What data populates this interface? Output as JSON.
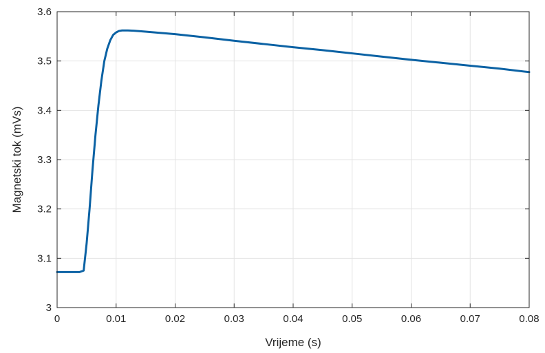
{
  "chart_data": {
    "type": "line",
    "title": "",
    "xlabel": "Vrijeme (s)",
    "ylabel": "Magnetski tok (mVs)",
    "xlim": [
      0,
      0.08
    ],
    "ylim": [
      3,
      3.6
    ],
    "grid": true,
    "xticks": [
      0,
      0.01,
      0.02,
      0.03,
      0.04,
      0.05,
      0.06,
      0.07,
      0.08
    ],
    "xtick_labels": [
      "0",
      "0.01",
      "0.02",
      "0.03",
      "0.04",
      "0.05",
      "0.06",
      "0.07",
      "0.08"
    ],
    "yticks": [
      3,
      3.1,
      3.2,
      3.3,
      3.4,
      3.5,
      3.6
    ],
    "ytick_labels": [
      "3",
      "3.1",
      "3.2",
      "3.3",
      "3.4",
      "3.5",
      "3.6"
    ],
    "series": [
      {
        "color": "#0b62a4",
        "x": [
          0,
          0.002,
          0.0038,
          0.0045,
          0.005,
          0.0055,
          0.006,
          0.0065,
          0.007,
          0.0075,
          0.008,
          0.0085,
          0.009,
          0.0095,
          0.01,
          0.0105,
          0.011,
          0.0115,
          0.012,
          0.013,
          0.015,
          0.02,
          0.025,
          0.03,
          0.035,
          0.04,
          0.045,
          0.05,
          0.055,
          0.06,
          0.065,
          0.07,
          0.075,
          0.08
        ],
        "y": [
          3.072,
          3.072,
          3.072,
          3.075,
          3.13,
          3.2,
          3.28,
          3.35,
          3.41,
          3.46,
          3.5,
          3.525,
          3.542,
          3.553,
          3.558,
          3.561,
          3.562,
          3.562,
          3.562,
          3.5615,
          3.5595,
          3.5545,
          3.548,
          3.541,
          3.5345,
          3.528,
          3.522,
          3.5155,
          3.509,
          3.5025,
          3.4965,
          3.4905,
          3.4845,
          3.4775
        ]
      }
    ]
  }
}
